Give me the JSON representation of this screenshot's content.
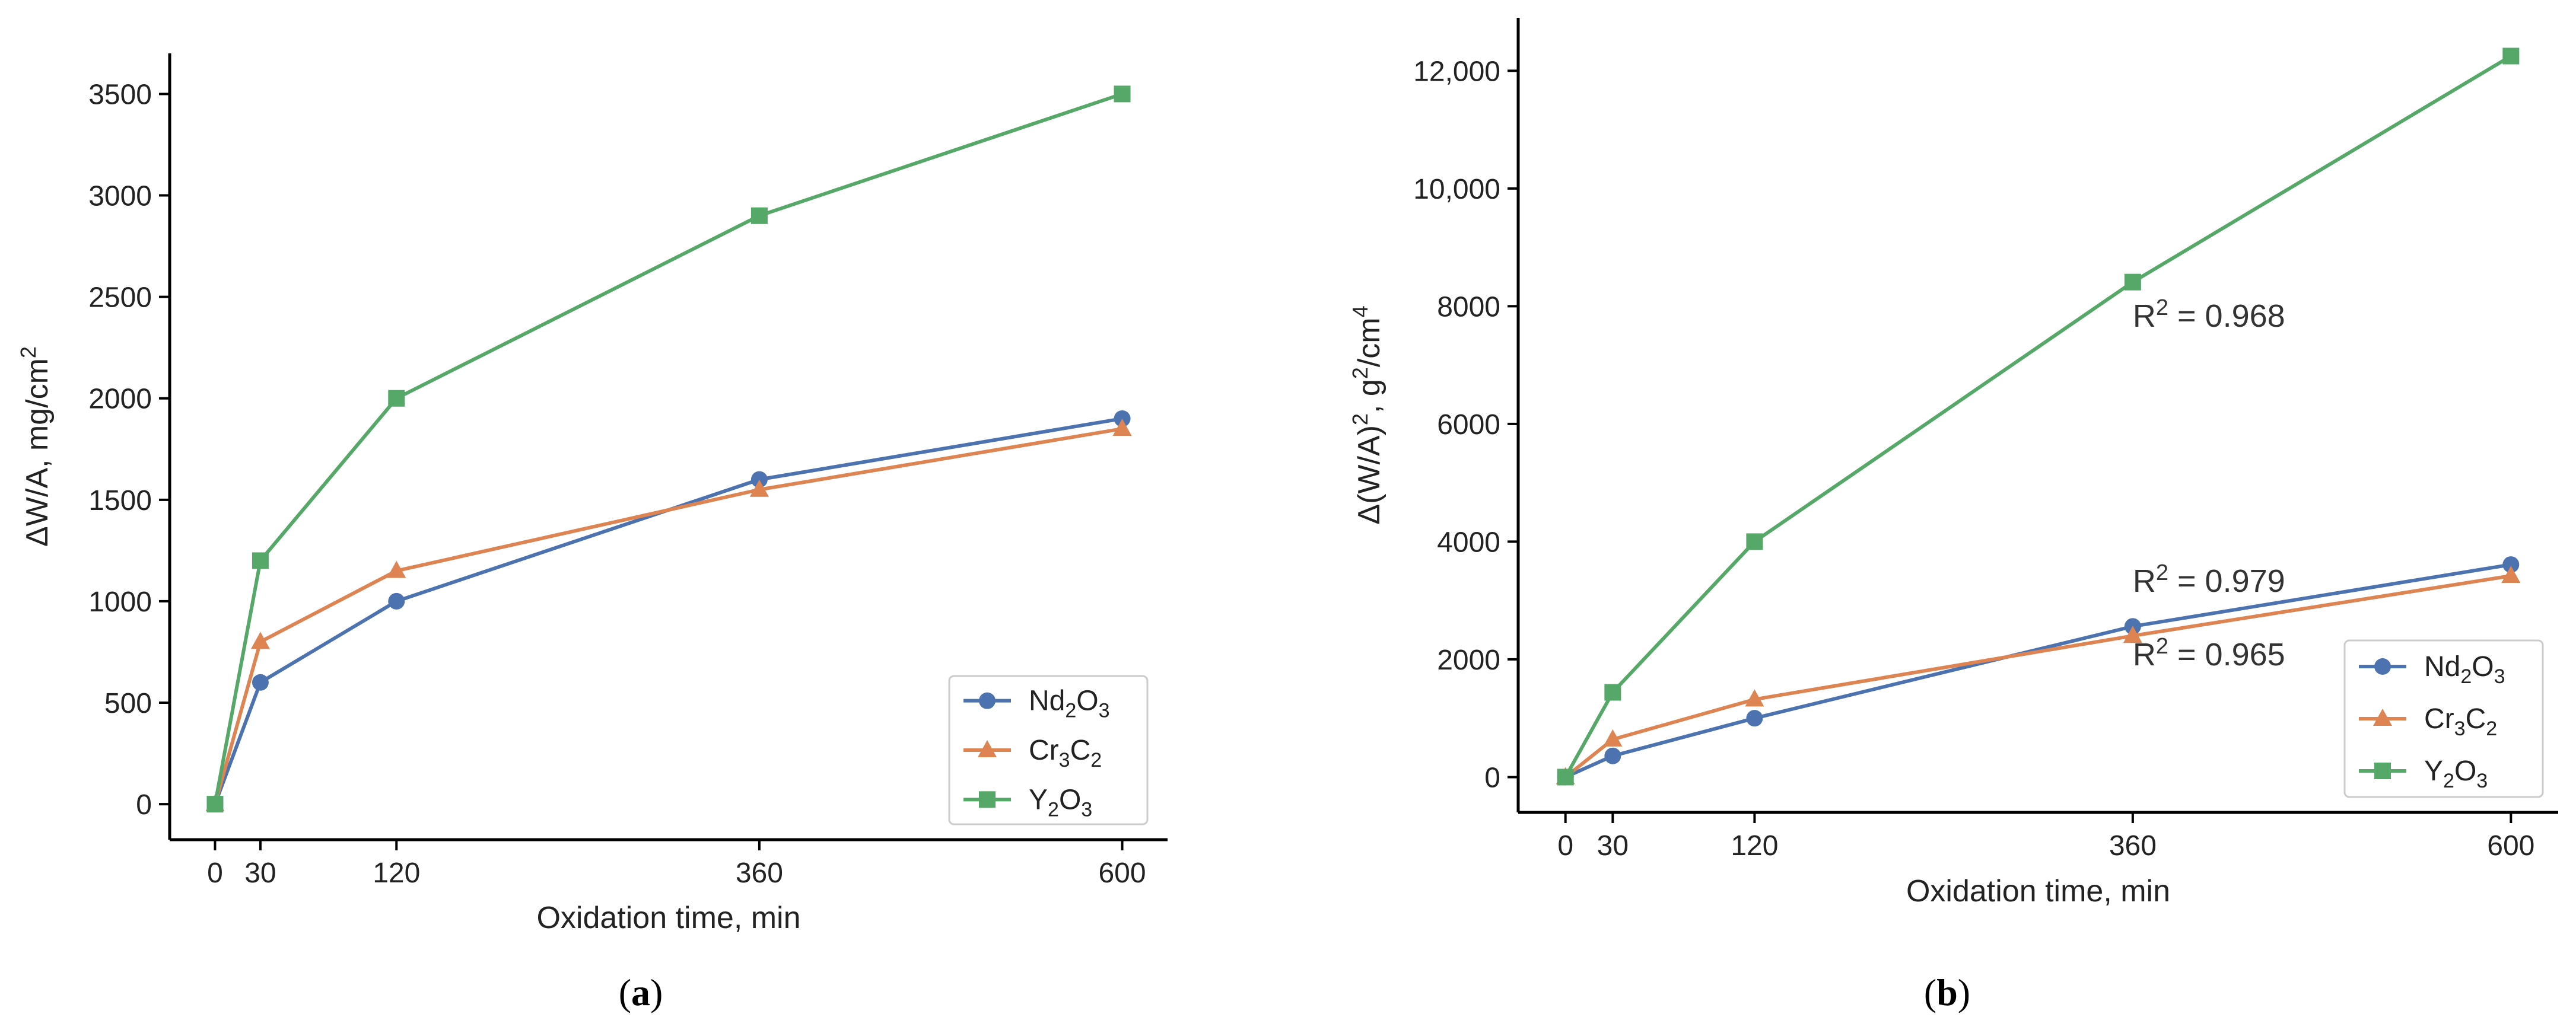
{
  "chart_data": [
    {
      "type": "line",
      "panel_label": "a",
      "xlabel": "Oxidation time, min",
      "ylabel": "ΔW/A, mg/cm",
      "ylabel_sup": "2",
      "x": [
        0,
        30,
        120,
        360,
        600
      ],
      "xticks": [
        "0",
        "30",
        "120",
        "360",
        "600"
      ],
      "xlim": [
        -30,
        630
      ],
      "ylim": [
        -175,
        3700
      ],
      "yticks": [
        0,
        500,
        1000,
        1500,
        2000,
        2500,
        3000,
        3500
      ],
      "ytick_labels": [
        "0",
        "500",
        "1000",
        "1500",
        "2000",
        "2500",
        "3000",
        "3500"
      ],
      "legend_position": "lower-right",
      "series": [
        {
          "name": "Nd2O3",
          "label_parts": [
            "Nd",
            "2",
            "O",
            "3"
          ],
          "color": "#4c72b0",
          "marker": "circle",
          "values": [
            0,
            600,
            1000,
            1600,
            1900
          ]
        },
        {
          "name": "Cr3C2",
          "label_parts": [
            "Cr",
            "3",
            "C",
            "2"
          ],
          "color": "#dd8452",
          "marker": "triangle",
          "values": [
            0,
            800,
            1150,
            1550,
            1850
          ]
        },
        {
          "name": "Y2O3",
          "label_parts": [
            "Y",
            "2",
            "O",
            "3"
          ],
          "color": "#55a868",
          "marker": "square",
          "values": [
            0,
            1200,
            2000,
            2900,
            3500
          ]
        }
      ]
    },
    {
      "type": "line",
      "panel_label": "b",
      "xlabel": "Oxidation time, min",
      "ylabel_parts": [
        "Δ(W/A)",
        "2",
        ", g",
        "2",
        "/cm",
        "4"
      ],
      "x": [
        0,
        30,
        120,
        360,
        600
      ],
      "xticks": [
        "0",
        "30",
        "120",
        "360",
        "600"
      ],
      "xlim": [
        -30,
        630
      ],
      "ylim": [
        -600,
        12900
      ],
      "yticks": [
        0,
        2000,
        4000,
        6000,
        8000,
        10000,
        12000
      ],
      "ytick_labels": [
        "0",
        "2000",
        "4000",
        "6000",
        "8000",
        "10,000",
        "12,000"
      ],
      "legend_position": "lower-right",
      "series": [
        {
          "name": "Nd2O3",
          "label_parts": [
            "Nd",
            "2",
            "O",
            "3"
          ],
          "color": "#4c72b0",
          "marker": "circle",
          "values": [
            0,
            360,
            1000,
            2560,
            3610
          ]
        },
        {
          "name": "Cr3C2",
          "label_parts": [
            "Cr",
            "3",
            "C",
            "2"
          ],
          "color": "#dd8452",
          "marker": "triangle",
          "values": [
            0,
            640,
            1320,
            2400,
            3420
          ]
        },
        {
          "name": "Y2O3",
          "label_parts": [
            "Y",
            "2",
            "O",
            "3"
          ],
          "color": "#55a868",
          "marker": "square",
          "values": [
            0,
            1440,
            4000,
            8410,
            12250
          ]
        }
      ],
      "annotations": [
        {
          "text_prefix": "R",
          "sup": "2",
          "text_suffix": " = 0.968",
          "x": 360,
          "y": 7650
        },
        {
          "text_prefix": "R",
          "sup": "2",
          "text_suffix": " = 0.979",
          "x": 360,
          "y": 3150
        },
        {
          "text_prefix": "R",
          "sup": "2",
          "text_suffix": " = 0.965",
          "x": 360,
          "y": 1900
        }
      ]
    }
  ]
}
